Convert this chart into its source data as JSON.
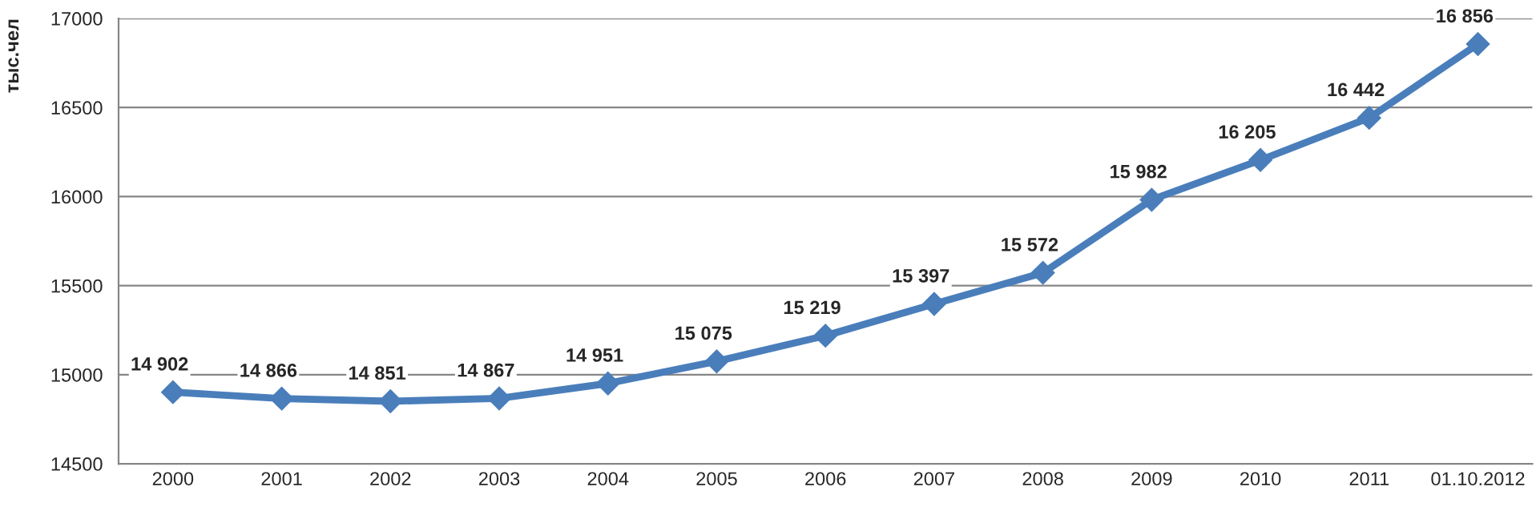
{
  "chart_data": {
    "type": "line",
    "ylabel": "тыс.чел",
    "categories": [
      "2000",
      "2001",
      "2002",
      "2003",
      "2004",
      "2005",
      "2006",
      "2007",
      "2008",
      "2009",
      "2010",
      "2011",
      "01.10.2012"
    ],
    "series": [
      {
        "color": "#4a7ebb",
        "values": [
          14902,
          14866,
          14851,
          14867,
          14951,
          15075,
          15219,
          15397,
          15572,
          15982,
          16205,
          16442,
          16856
        ],
        "value_labels": [
          "14 902",
          "14 866",
          "14 851",
          "14 867",
          "14 951",
          "15 075",
          "15 219",
          "15 397",
          "15 572",
          "15 982",
          "16 205",
          "16 442",
          "16 856"
        ]
      }
    ],
    "ylim": [
      14500,
      17000
    ],
    "yticks": [
      14500,
      15000,
      15500,
      16000,
      16500,
      17000
    ],
    "grid": "y",
    "marker": "diamond",
    "line_style": "solid",
    "legend": false
  }
}
